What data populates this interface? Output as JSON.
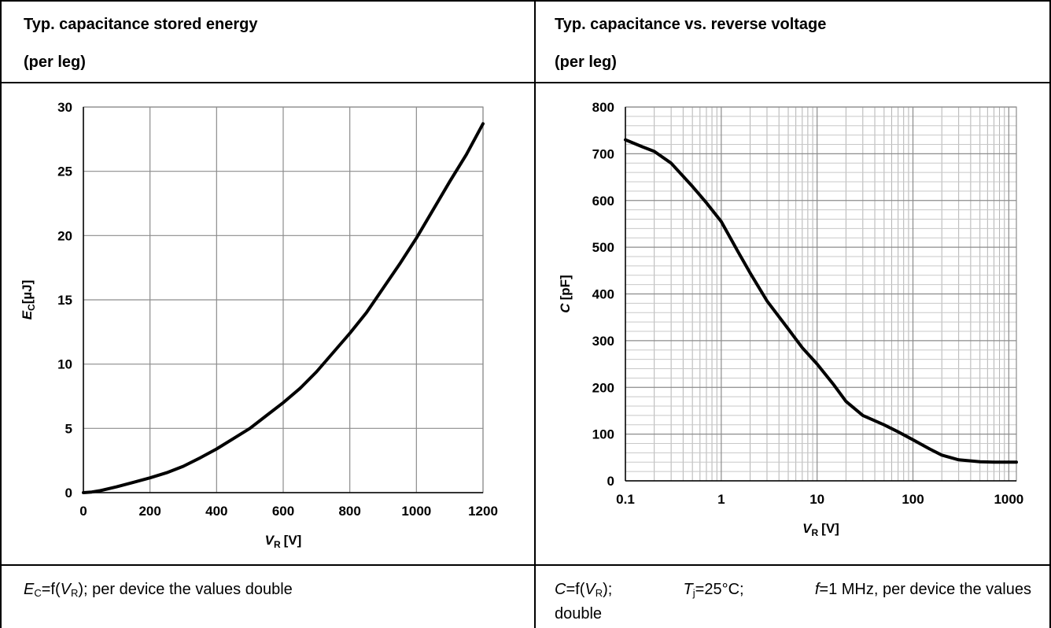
{
  "panels": [
    {
      "title_line1": "Typ. capacitance stored energy",
      "title_line2": "(per leg)",
      "caption": {
        "symbol": "E",
        "symbol_sub": "C",
        "eq": "=f(",
        "arg": "V",
        "arg_sub": "R",
        "rest": "); per device the values double"
      }
    },
    {
      "title_line1": "Typ. capacitance vs. reverse voltage",
      "title_line2": "(per leg)",
      "caption": {
        "symbol": "C",
        "eq": "=f(",
        "arg": "V",
        "arg_sub": "R",
        "p1": ");",
        "tj": "T",
        "tj_sub": "j",
        "tj_val": "=25°C;",
        "f": "f",
        "f_val": "=1 MHz, per device the values",
        "line2": "double"
      }
    }
  ],
  "chart_data": [
    {
      "type": "line",
      "xlabel": "V",
      "xlabel_sub": "R",
      "xlabel_unit": "[V]",
      "ylabel": "E",
      "ylabel_sub": "C",
      "ylabel_unit": "[µJ]",
      "xlim": [
        0,
        1200
      ],
      "ylim": [
        0,
        30
      ],
      "x_scale": "linear",
      "grid": true,
      "xticks": [
        0,
        200,
        400,
        600,
        800,
        1000,
        1200
      ],
      "yticks": [
        0,
        5,
        10,
        15,
        20,
        25,
        30
      ],
      "xtick_labels": [
        "0",
        "200",
        "400",
        "600",
        "800",
        "1000",
        "1200"
      ],
      "ytick_labels": [
        "0",
        "5",
        "10",
        "15",
        "20",
        "25",
        "30"
      ],
      "line_color": "#000000",
      "series": [
        {
          "x": [
            0,
            25,
            50,
            100,
            150,
            200,
            250,
            300,
            350,
            400,
            450,
            500,
            550,
            600,
            650,
            700,
            750,
            800,
            850,
            900,
            950,
            1000,
            1050,
            1100,
            1150,
            1200
          ],
          "y": [
            0,
            0.05,
            0.15,
            0.45,
            0.8,
            1.15,
            1.55,
            2.05,
            2.7,
            3.4,
            4.2,
            5.0,
            6.0,
            7.0,
            8.1,
            9.4,
            10.9,
            12.4,
            14.0,
            15.9,
            17.8,
            19.8,
            22.0,
            24.2,
            26.3,
            28.7
          ]
        }
      ]
    },
    {
      "type": "line",
      "xlabel": "V",
      "xlabel_sub": "R",
      "xlabel_unit": "[V]",
      "ylabel": "C",
      "ylabel_unit": "[pF]",
      "xlim": [
        0.1,
        1200
      ],
      "ylim": [
        0,
        800
      ],
      "x_scale": "log",
      "grid": true,
      "xticks": [
        0.1,
        1,
        10,
        100,
        1000
      ],
      "yticks": [
        0,
        100,
        200,
        300,
        400,
        500,
        600,
        700,
        800
      ],
      "xtick_labels": [
        "0.1",
        "1",
        "10",
        "100",
        "1000"
      ],
      "ytick_labels": [
        "0",
        "100",
        "200",
        "300",
        "400",
        "500",
        "600",
        "700",
        "800"
      ],
      "line_color": "#000000",
      "series": [
        {
          "x": [
            0.1,
            0.15,
            0.2,
            0.3,
            0.5,
            0.7,
            1,
            1.5,
            2,
            3,
            5,
            7,
            10,
            15,
            20,
            30,
            50,
            70,
            100,
            150,
            200,
            300,
            500,
            700,
            1000,
            1200
          ],
          "y": [
            730,
            715,
            705,
            680,
            630,
            595,
            555,
            490,
            445,
            385,
            325,
            285,
            250,
            205,
            170,
            140,
            120,
            105,
            88,
            68,
            55,
            45,
            41,
            40,
            40,
            40
          ]
        }
      ]
    }
  ]
}
